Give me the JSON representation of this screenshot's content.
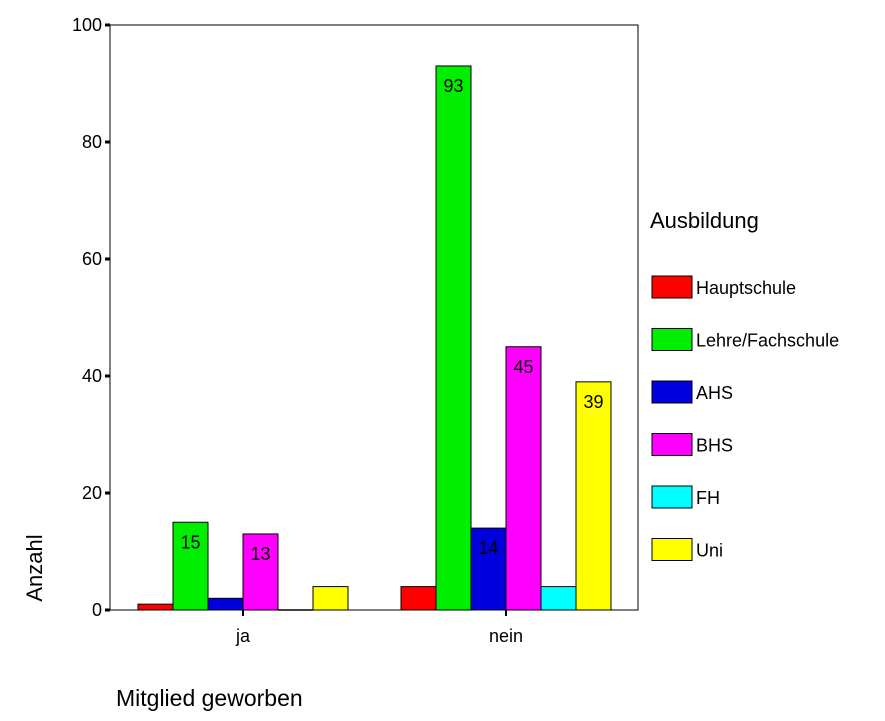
{
  "chart_data": {
    "type": "bar",
    "xlabel": "Mitglied geworben",
    "ylabel": "Anzahl",
    "ylim": [
      0,
      100
    ],
    "yticks": [
      0,
      20,
      40,
      60,
      80,
      100
    ],
    "categories": [
      "ja",
      "nein"
    ],
    "legend": {
      "title": "Ausbildung",
      "placement": "right"
    },
    "grid": false,
    "series": [
      {
        "name": "Hauptschule",
        "color": "#ff0000",
        "values": [
          1,
          4
        ],
        "labels": [
          "",
          ""
        ]
      },
      {
        "name": "Lehre/Fachschule",
        "color": "#00ee00",
        "values": [
          15,
          93
        ],
        "labels": [
          "15",
          "93"
        ]
      },
      {
        "name": "AHS",
        "color": "#0000dd",
        "values": [
          2,
          14
        ],
        "labels": [
          "",
          "14"
        ]
      },
      {
        "name": "BHS",
        "color": "#ff00ff",
        "values": [
          13,
          45
        ],
        "labels": [
          "13",
          "45"
        ]
      },
      {
        "name": "FH",
        "color": "#00ffff",
        "values": [
          0,
          4
        ],
        "labels": [
          "",
          ""
        ]
      },
      {
        "name": "Uni",
        "color": "#ffff00",
        "values": [
          4,
          39
        ],
        "labels": [
          "",
          "39"
        ]
      }
    ]
  }
}
